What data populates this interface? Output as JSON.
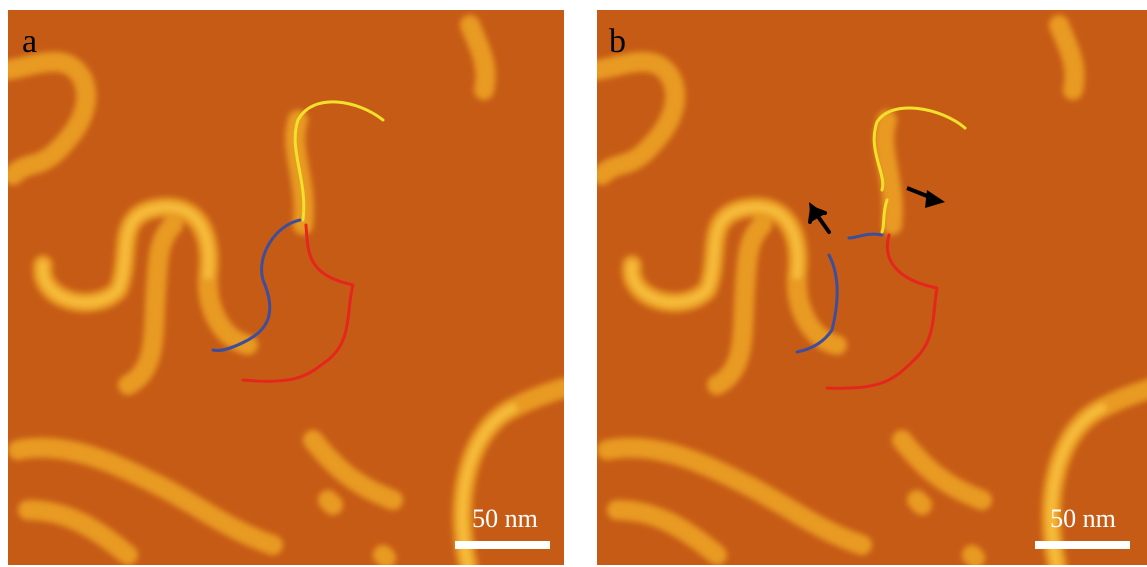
{
  "panels": [
    {
      "label": "a",
      "scale_bar": "50 nm"
    },
    {
      "label": "b",
      "scale_bar": "50 nm"
    }
  ]
}
